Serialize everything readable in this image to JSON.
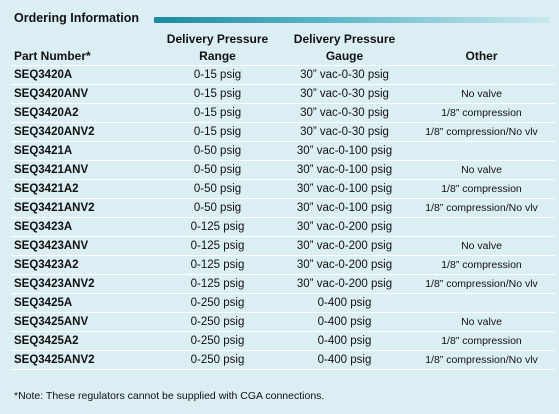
{
  "title": "Ordering Information",
  "headers": {
    "part": "Part Number*",
    "range_l1": "Delivery Pressure",
    "range_l2": "Range",
    "gauge_l1": "Delivery Pressure",
    "gauge_l2": "Gauge",
    "other": "Other"
  },
  "rows": [
    {
      "part": "SEQ3420A",
      "range": "0-15 psig",
      "gauge": "30” vac-0-30 psig",
      "other": ""
    },
    {
      "part": "SEQ3420ANV",
      "range": "0-15 psig",
      "gauge": "30” vac-0-30 psig",
      "other": "No valve"
    },
    {
      "part": "SEQ3420A2",
      "range": "0-15 psig",
      "gauge": "30” vac-0-30 psig",
      "other": "1/8” compression"
    },
    {
      "part": "SEQ3420ANV2",
      "range": "0-15 psig",
      "gauge": "30” vac-0-30 psig",
      "other": "1/8” compression/No vlv"
    },
    {
      "part": "SEQ3421A",
      "range": "0-50 psig",
      "gauge": "30” vac-0-100 psig",
      "other": ""
    },
    {
      "part": "SEQ3421ANV",
      "range": "0-50 psig",
      "gauge": "30” vac-0-100 psig",
      "other": "No valve"
    },
    {
      "part": "SEQ3421A2",
      "range": "0-50 psig",
      "gauge": "30” vac-0-100 psig",
      "other": "1/8” compression"
    },
    {
      "part": "SEQ3421ANV2",
      "range": "0-50 psig",
      "gauge": "30” vac-0-100 psig",
      "other": "1/8” compression/No vlv"
    },
    {
      "part": "SEQ3423A",
      "range": "0-125 psig",
      "gauge": "30” vac-0-200 psig",
      "other": ""
    },
    {
      "part": "SEQ3423ANV",
      "range": "0-125 psig",
      "gauge": "30” vac-0-200 psig",
      "other": "No valve"
    },
    {
      "part": "SEQ3423A2",
      "range": "0-125 psig",
      "gauge": "30” vac-0-200 psig",
      "other": "1/8” compression"
    },
    {
      "part": "SEQ3423ANV2",
      "range": "0-125 psig",
      "gauge": "30” vac-0-200 psig",
      "other": "1/8” compression/No vlv"
    },
    {
      "part": "SEQ3425A",
      "range": "0-250 psig",
      "gauge": "0-400 psig",
      "other": ""
    },
    {
      "part": "SEQ3425ANV",
      "range": "0-250 psig",
      "gauge": "0-400 psig",
      "other": "No valve"
    },
    {
      "part": "SEQ3425A2",
      "range": "0-250 psig",
      "gauge": "0-400 psig",
      "other": "1/8” compression"
    },
    {
      "part": "SEQ3425ANV2",
      "range": "0-250 psig",
      "gauge": "0-400 psig",
      "other": "1/8” compression/No vlv"
    }
  ],
  "note": "*Note: These regulators cannot be supplied with CGA connections.",
  "colors": {
    "background": "#dbeef4",
    "title_bar": "#1b8a9e",
    "row_divider": "#ffffff"
  }
}
